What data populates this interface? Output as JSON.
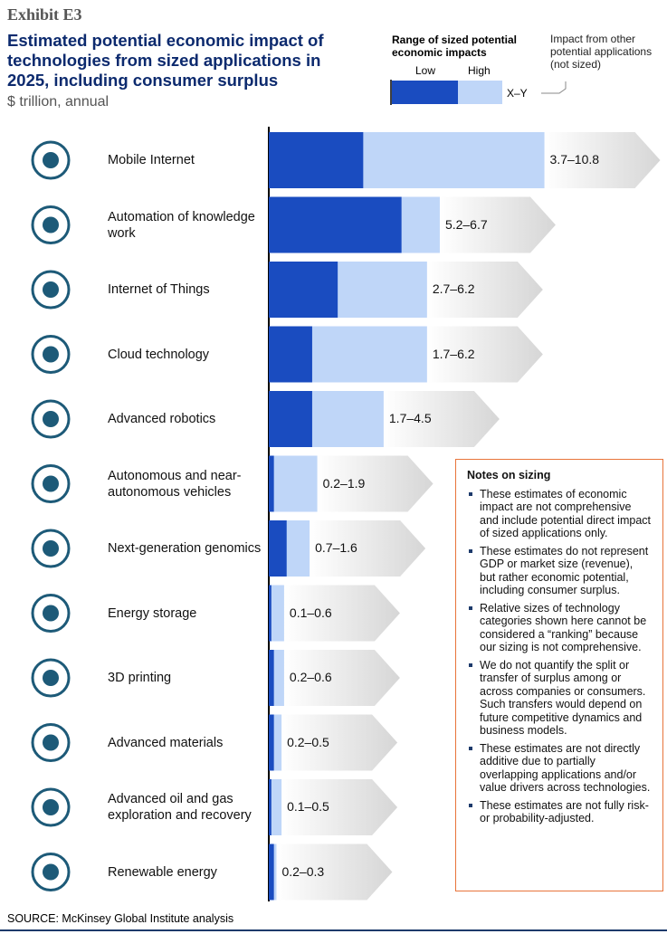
{
  "header": {
    "exhibit": "Exhibit E3",
    "title": "Estimated potential economic impact of technologies from sized applications in 2025, including consumer surplus",
    "subtitle": "$ trillion, annual"
  },
  "chart_data": {
    "type": "range_bar",
    "categories": [
      "Mobile Internet",
      "Automation of knowledge work",
      "Internet of Things",
      "Cloud technology",
      "Advanced robotics",
      "Autonomous and near-autonomous vehicles",
      "Next-generation genomics",
      "Energy storage",
      "3D printing",
      "Advanced materials",
      "Advanced oil and gas exploration and recovery",
      "Renewable energy"
    ],
    "series": [
      {
        "name": "Low",
        "color": "#1a4cc0",
        "values": [
          3.7,
          5.2,
          2.7,
          1.7,
          1.7,
          0.2,
          0.7,
          0.1,
          0.2,
          0.2,
          0.1,
          0.2
        ]
      },
      {
        "name": "High",
        "color": "#bfd6f8",
        "values": [
          10.8,
          6.7,
          6.2,
          6.2,
          4.5,
          1.9,
          1.6,
          0.6,
          0.6,
          0.5,
          0.5,
          0.3
        ],
        "value_labels": [
          "3.7–10.8",
          "5.2–6.7",
          "2.7–6.2",
          "1.7–6.2",
          "1.7–4.5",
          "0.2–1.9",
          "0.7–1.6",
          "0.1–0.6",
          "0.2–0.6",
          "0.2–0.5",
          "0.1–0.5",
          "0.2–0.3"
        ]
      }
    ],
    "legend": {
      "title": "Range of sized potential economic impacts",
      "range_label": "X–Y",
      "other_label": "Impact from other potential applications (not sized)"
    }
  },
  "notes": {
    "title": "Notes on sizing",
    "items": [
      "These estimates of economic impact are not comprehensive and include potential direct impact of sized applications only.",
      "These estimates do not represent GDP or market size (revenue), but rather economic potential, including consumer surplus.",
      "Relative sizes of technology categories shown here cannot be considered a “ranking” because our sizing is not comprehensive.",
      "We do not quantify the split or transfer of surplus among or across companies or consumers. Such transfers would depend on future competitive dynamics and business models.",
      "These estimates are not directly additive due to partially overlapping applications and/or value drivers across technologies.",
      "These estimates are not fully risk- or probability-adjusted."
    ]
  },
  "source": "SOURCE: McKinsey Global Institute analysis"
}
